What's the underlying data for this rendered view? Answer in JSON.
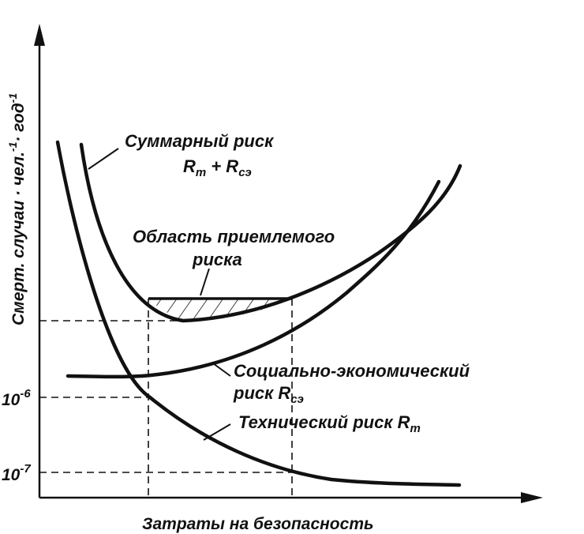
{
  "diagram": {
    "y_axis_label_main": "Смерт. случаи · чел.",
    "y_axis_sup_1": "-1",
    "y_axis_label_mid": "· год",
    "y_axis_sup_2": "-1",
    "x_axis_label": "Затраты на безопасность",
    "tick_1e6_base": "10",
    "tick_1e6_exp": "-6",
    "tick_1e7_base": "10",
    "tick_1e7_exp": "-7",
    "total_risk_label": "Суммарный риск",
    "total_risk_formula_r1": "R",
    "total_risk_formula_sub1": "т",
    "total_risk_formula_plus": " + R",
    "total_risk_formula_sub2": "сэ",
    "acceptable_area_line1": "Область приемлемого",
    "acceptable_area_line2": "риска",
    "socio_economic_line1": "Социально-экономический",
    "socio_economic_line2": "риск  R",
    "socio_economic_sub": "сэ",
    "technical_risk_label": "Технический риск  R",
    "technical_risk_sub": "т",
    "colors": {
      "line": "#111111",
      "background": "#ffffff"
    }
  }
}
